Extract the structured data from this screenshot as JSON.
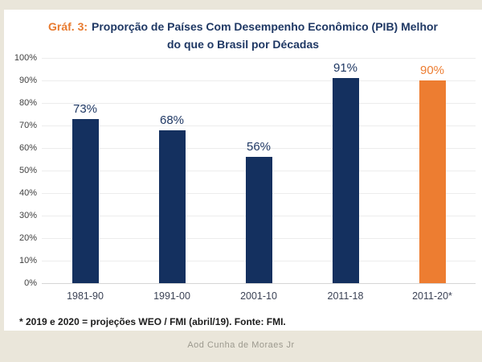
{
  "frame": {
    "background_color": "#eae6da",
    "panel_background_color": "#ffffff"
  },
  "title": {
    "prefix": "Gráf. 3:",
    "line1": "Proporção de Países Com Desempenho Econômico (PIB) Melhor",
    "line2": "do que o Brasil por Décadas",
    "prefix_color": "#e87a2e",
    "text_color": "#1f3864"
  },
  "chart_data": {
    "type": "bar",
    "title": "Gráf. 3: Proporção de Países Com Desempenho Econômico (PIB) Melhor do que o Brasil por Décadas",
    "categories": [
      "1981-90",
      "1991-00",
      "2001-10",
      "2011-18",
      "2011-20*"
    ],
    "values": [
      73,
      68,
      56,
      91,
      90
    ],
    "value_labels": [
      "73%",
      "68%",
      "56%",
      "91%",
      "90%"
    ],
    "bar_colors": [
      "#14305f",
      "#14305f",
      "#14305f",
      "#14305f",
      "#ed7d31"
    ],
    "value_label_colors": [
      "#1f3864",
      "#1f3864",
      "#1f3864",
      "#1f3864",
      "#ed7d31"
    ],
    "xlabel": "",
    "ylabel": "",
    "ylim": [
      0,
      100
    ],
    "y_tick_step": 10,
    "y_tick_labels": [
      "100%",
      "90%",
      "80%",
      "70%",
      "60%",
      "50%",
      "40%",
      "30%",
      "20%",
      "10%",
      "0%"
    ],
    "grid": "horizontal",
    "legend": "none"
  },
  "footnote": {
    "text": "* 2019 e 2020 = projeções WEO / FMI (abril/19). Fonte: FMI."
  },
  "footer": {
    "credit": "Aod Cunha de Moraes Jr"
  }
}
